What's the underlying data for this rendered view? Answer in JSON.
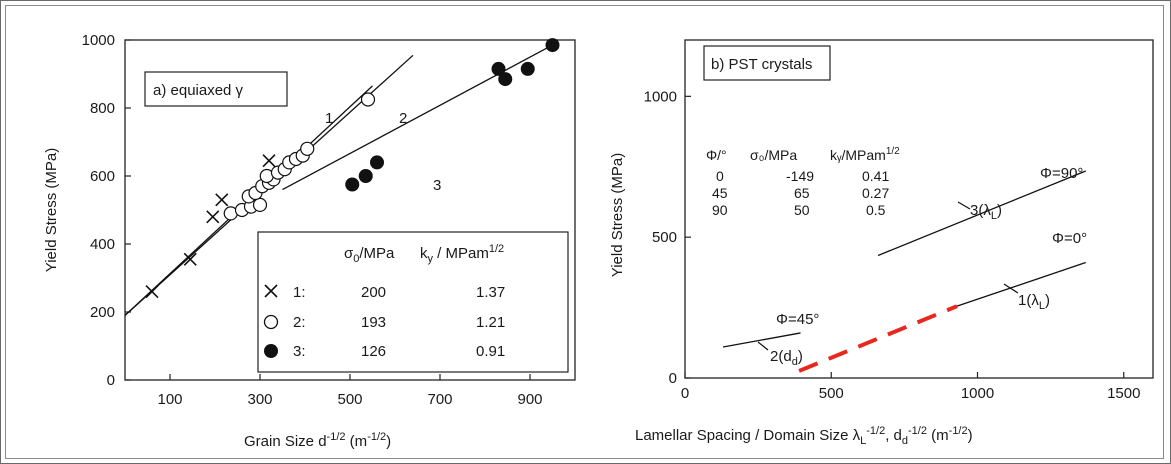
{
  "chart_data": [
    {
      "type": "scatter",
      "panel_label": "a) equiaxed γ",
      "xlabel_main": "Grain Size d",
      "xlabel_exp": "-1/2",
      "xlabel_unit_open": " (m",
      "xlabel_unit_exp": "-1/2",
      "xlabel_unit_close": ")",
      "ylabel": "Yield Stress (MPa)",
      "xlim": [
        0,
        1000
      ],
      "ylim": [
        0,
        1000
      ],
      "xticks": [
        100,
        300,
        500,
        700,
        900
      ],
      "yticks": [
        0,
        200,
        400,
        600,
        800,
        1000
      ],
      "series": [
        {
          "name": "1",
          "marker": "cross",
          "points": [
            [
              60,
              260
            ],
            [
              145,
              355
            ],
            [
              195,
              480
            ],
            [
              215,
              530
            ],
            [
              320,
              645
            ]
          ],
          "fit_line": {
            "x": [
              0,
              550
            ],
            "y": [
              190,
              865
            ]
          }
        },
        {
          "name": "2",
          "marker": "open-circle",
          "points": [
            [
              235,
              490
            ],
            [
              260,
              500
            ],
            [
              280,
              510
            ],
            [
              300,
              515
            ],
            [
              275,
              540
            ],
            [
              290,
              550
            ],
            [
              305,
              570
            ],
            [
              320,
              580
            ],
            [
              330,
              590
            ],
            [
              315,
              600
            ],
            [
              340,
              610
            ],
            [
              355,
              620
            ],
            [
              365,
              640
            ],
            [
              380,
              650
            ],
            [
              395,
              660
            ],
            [
              405,
              680
            ],
            [
              540,
              825
            ]
          ],
          "fit_line": {
            "x": [
              0,
              640
            ],
            "y": [
              190,
              955
            ]
          }
        },
        {
          "name": "3",
          "marker": "filled-circle",
          "points": [
            [
              505,
              575
            ],
            [
              535,
              600
            ],
            [
              560,
              640
            ],
            [
              830,
              915
            ],
            [
              845,
              885
            ],
            [
              895,
              915
            ],
            [
              950,
              985
            ]
          ],
          "fit_line": {
            "x": [
              350,
              950
            ],
            "y": [
              560,
              985
            ]
          }
        }
      ],
      "line_labels": [
        "1",
        "2",
        "3"
      ],
      "legend": {
        "header_sigma": "σ",
        "header_sigma_sub": "0",
        "header_sigma_rest": "/MPa",
        "header_k": "k",
        "header_k_sub": "y",
        "header_k_rest": " / MPam",
        "header_k_sup": "1/2",
        "rows": [
          {
            "marker": "cross",
            "label": "1:",
            "sigma0": "200",
            "ky": "1.37"
          },
          {
            "marker": "open-circle",
            "label": "2:",
            "sigma0": "193",
            "ky": "1.21"
          },
          {
            "marker": "filled-circle",
            "label": "3:",
            "sigma0": "126",
            "ky": "0.91"
          }
        ],
        "placement": "bottom-right"
      }
    },
    {
      "type": "line",
      "panel_label": "b) PST crystals",
      "xlabel_main": "Lamellar Spacing / Domain Size λ",
      "xlabel_sub1": "L",
      "xlabel_exp1": "-1/2",
      "xlabel_mid": ", d",
      "xlabel_sub2": "d",
      "xlabel_exp2": "-1/2",
      "xlabel_unit_open": " (m",
      "xlabel_unit_exp": "-1/2",
      "xlabel_unit_close": ")",
      "ylabel": "Yield Stress (MPa)",
      "xlim": [
        0,
        1600
      ],
      "ylim": [
        0,
        1200
      ],
      "xticks": [
        0,
        500,
        1000,
        1500
      ],
      "yticks": [
        0,
        500,
        1000
      ],
      "table": {
        "headers": [
          "Φ/°",
          "σ₀/MPa",
          "kᵧ/MPam",
          "1/2"
        ],
        "rows": [
          [
            "0",
            "-149",
            "0.41"
          ],
          [
            "45",
            "65",
            "0.27"
          ],
          [
            "90",
            "50",
            "0.5"
          ]
        ]
      },
      "series": [
        {
          "name": "Φ=90°",
          "curve_label": "3(λL)",
          "x": [
            660,
            1370
          ],
          "y": [
            435,
            735
          ]
        },
        {
          "name": "Φ=0°",
          "curve_label": "1(λL)",
          "x": [
            930,
            1370
          ],
          "y": [
            255,
            410
          ]
        },
        {
          "name": "Φ=45°",
          "curve_label": "2(dd)",
          "x": [
            130,
            395
          ],
          "y": [
            110,
            160
          ]
        },
        {
          "name": "extrapolation",
          "style": "dashed",
          "color": "#e8281e",
          "x": [
            390,
            930
          ],
          "y": [
            25,
            255
          ]
        }
      ],
      "annotations": [
        "Φ=90°",
        "Φ=0°",
        "Φ=45°",
        "3(λ",
        "L",
        ")",
        "1(λ",
        "L",
        ")",
        "2(d",
        "d",
        ")"
      ]
    }
  ]
}
